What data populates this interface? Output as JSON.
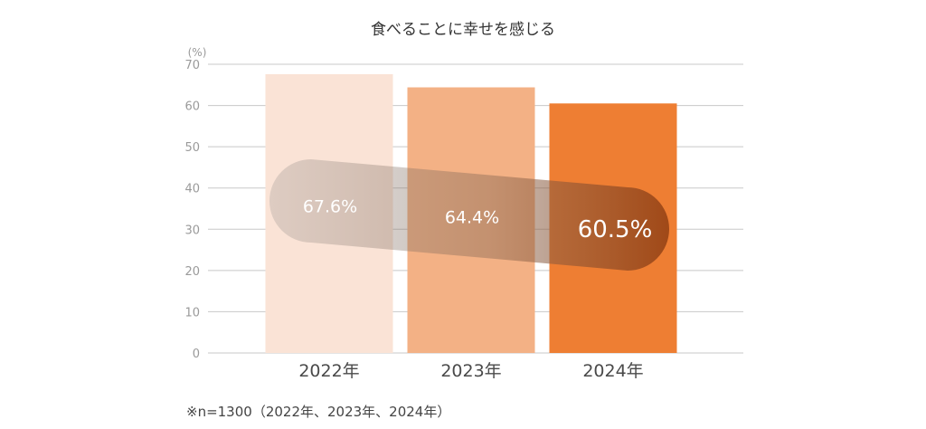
{
  "chart_data": {
    "type": "bar",
    "title": "食べることに幸せを感じる",
    "unit_label": "(%)",
    "categories": [
      "2022年",
      "2023年",
      "2024年"
    ],
    "values": [
      67.6,
      64.4,
      60.5
    ],
    "value_labels": [
      "67.6%",
      "64.4%",
      "60.5%"
    ],
    "ylim": [
      0,
      70
    ],
    "yticks": [
      0,
      10,
      20,
      30,
      40,
      50,
      60,
      70
    ],
    "grid": true,
    "colors": {
      "bars": [
        "#fae3d6",
        "#f3b185",
        "#ee7e33"
      ],
      "trend_band": "#7a7a7a",
      "grid": "#c8c8c8"
    }
  },
  "footnote": "※n=1300（2022年、2023年、2024年）"
}
